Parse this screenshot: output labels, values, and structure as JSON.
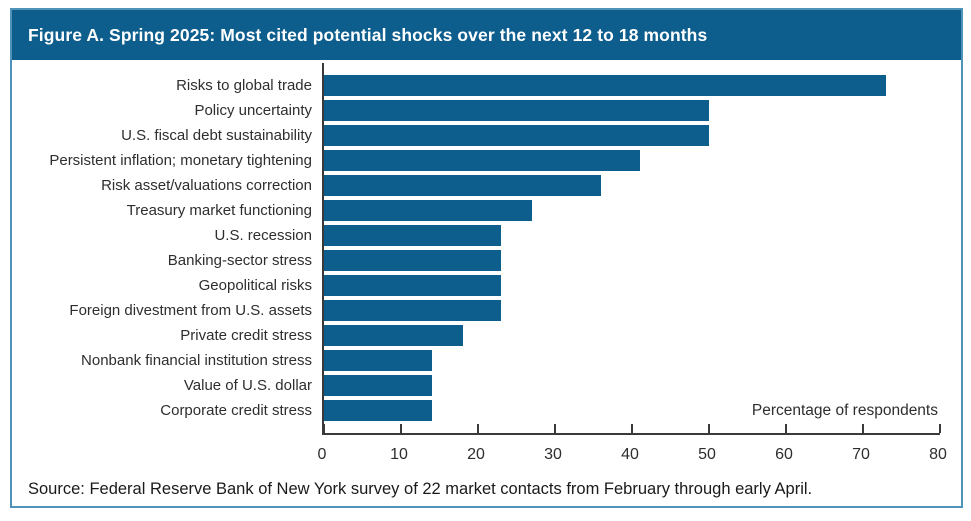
{
  "figure": {
    "title": "Figure A. Spring 2025: Most cited potential shocks over the next 12 to 18 months",
    "source": "Source: Federal Reserve Bank of New York survey of 22 market contacts from February through early April."
  },
  "chart_data": {
    "type": "bar",
    "orientation": "horizontal",
    "title": "Figure A. Spring 2025: Most cited potential shocks over the next 12 to 18 months",
    "categories": [
      "Risks to global trade",
      "Policy uncertainty",
      "U.S. fiscal debt sustainability",
      "Persistent inflation; monetary tightening",
      "Risk asset/valuations correction",
      "Treasury market functioning",
      "U.S. recession",
      "Banking-sector stress",
      "Geopolitical risks",
      "Foreign divestment from U.S. assets",
      "Private credit stress",
      "Nonbank financial institution stress",
      "Value of U.S. dollar",
      "Corporate credit stress"
    ],
    "values": [
      73,
      50,
      50,
      41,
      36,
      27,
      23,
      23,
      23,
      23,
      18,
      14,
      14,
      14
    ],
    "xlabel": "Percentage of respondents",
    "ylabel": "",
    "xticks": [
      0,
      10,
      20,
      30,
      40,
      50,
      60,
      70,
      80
    ],
    "xlim": [
      0,
      80
    ],
    "grid": false,
    "legend": false,
    "bar_color": "#0D5E8D"
  },
  "colors": {
    "accent": "#0D5E8D",
    "figure_border": "#4F94B8",
    "axis": "#3a3a3a",
    "text": "#2e2e2e",
    "title_text": "#ffffff"
  }
}
